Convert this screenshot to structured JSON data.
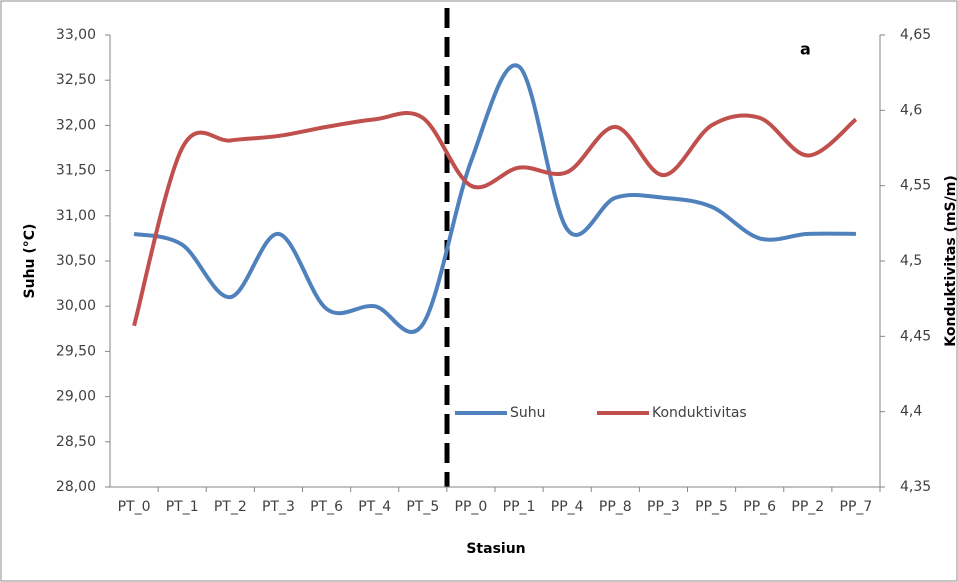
{
  "chart_data": {
    "type": "line",
    "annotation": "a",
    "x_label": "Stasiun",
    "y_label": "Suhu (°C)",
    "y2_label": "Konduktivitas (mS/m)",
    "categories": [
      "PT_0",
      "PT_1",
      "PT_2",
      "PT_3",
      "PT_6",
      "PT_4",
      "PT_5",
      "PP_0",
      "PP_1",
      "PP_4",
      "PP_8",
      "PP_3",
      "PP_5",
      "PP_6",
      "PP_2",
      "PP_7"
    ],
    "series": [
      {
        "name": "Suhu",
        "color": "#4f81bd",
        "values": [
          30.8,
          30.68,
          30.1,
          30.8,
          29.97,
          30.0,
          29.8,
          31.6,
          32.65,
          30.85,
          31.2,
          31.2,
          31.1,
          30.75,
          30.8,
          30.8
        ]
      },
      {
        "name": "Konduktivitas",
        "color": "#c0504d",
        "axis": "y2",
        "values": [
          4.457,
          4.575,
          4.58,
          4.583,
          4.589,
          4.594,
          4.595,
          4.55,
          4.562,
          4.559,
          4.589,
          4.557,
          4.59,
          4.595,
          4.57,
          4.594
        ]
      }
    ],
    "ylim": [
      28,
      33
    ],
    "yticks": [
      {
        "value": 28,
        "label": "28,00"
      },
      {
        "value": 28.5,
        "label": "28,50"
      },
      {
        "value": 29,
        "label": "29,00"
      },
      {
        "value": 29.5,
        "label": "29,50"
      },
      {
        "value": 30,
        "label": "30,00"
      },
      {
        "value": 30.5,
        "label": "30,50"
      },
      {
        "value": 31,
        "label": "31,00"
      },
      {
        "value": 31.5,
        "label": "31,50"
      },
      {
        "value": 32,
        "label": "32,00"
      },
      {
        "value": 32.5,
        "label": "32,50"
      },
      {
        "value": 33,
        "label": "33,00"
      }
    ],
    "y2lim": [
      4.35,
      4.65
    ],
    "y2ticks": [
      {
        "value": 4.35,
        "label": "4,35"
      },
      {
        "value": 4.4,
        "label": "4,4"
      },
      {
        "value": 4.45,
        "label": "4,45"
      },
      {
        "value": 4.5,
        "label": "4,5"
      },
      {
        "value": 4.55,
        "label": "4,55"
      },
      {
        "value": 4.6,
        "label": "4,6"
      },
      {
        "value": 4.65,
        "label": "4,65"
      }
    ]
  }
}
